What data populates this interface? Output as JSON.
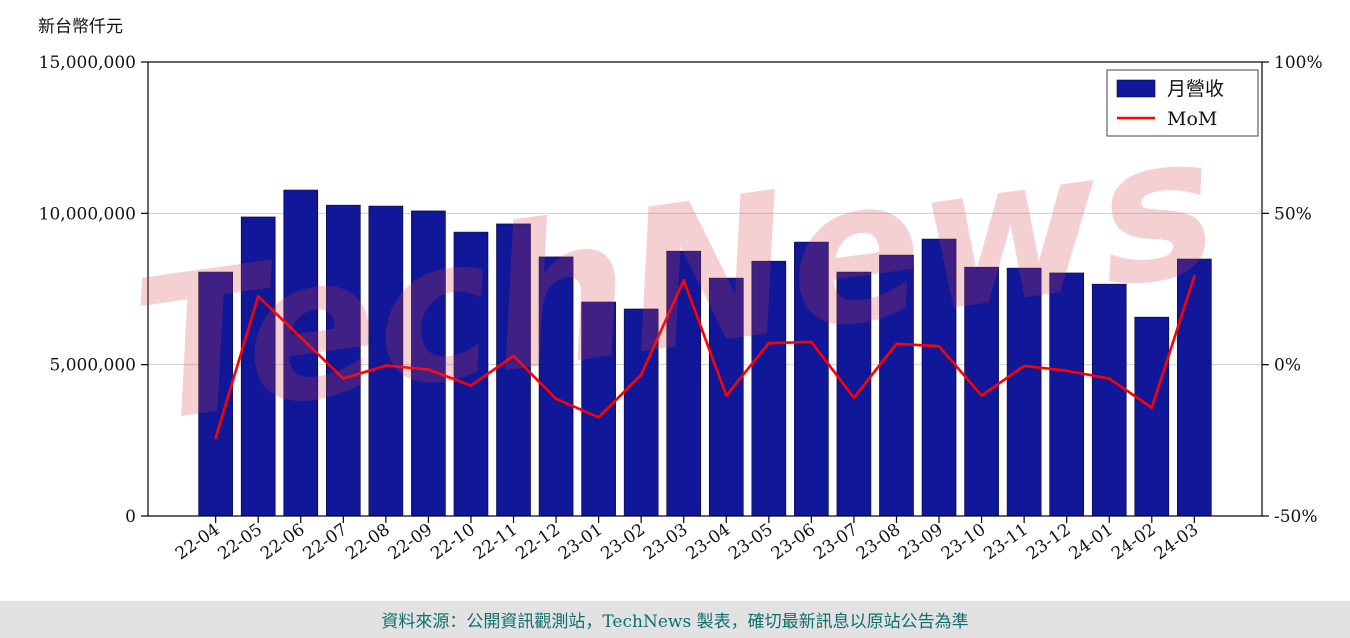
{
  "page": {
    "unit_label": "新台幣仟元",
    "watermark": "TechNews",
    "footer_text": "資料來源：公開資訊觀測站，TechNews 製表，確切最新訊息以原站公告為準"
  },
  "chart_data": {
    "type": "bar",
    "title": "",
    "categories": [
      "22-04",
      "22-05",
      "22-06",
      "22-07",
      "22-08",
      "22-09",
      "22-10",
      "22-11",
      "22-12",
      "23-01",
      "23-02",
      "23-03",
      "23-04",
      "23-05",
      "23-06",
      "23-07",
      "23-08",
      "23-09",
      "23-10",
      "23-11",
      "23-12",
      "24-01",
      "24-02",
      "24-03"
    ],
    "series": [
      {
        "name": "月營收",
        "type": "bar",
        "axis": "left",
        "color": "#101798",
        "values": [
          8060000,
          9880000,
          10770000,
          10270000,
          10240000,
          10080000,
          9380000,
          9650000,
          8560000,
          7070000,
          6840000,
          8750000,
          7860000,
          8420000,
          9050000,
          8060000,
          8620000,
          9150000,
          8220000,
          8190000,
          8030000,
          7660000,
          6570000,
          8490000
        ]
      },
      {
        "name": "MoM",
        "type": "line",
        "axis": "right",
        "color": "#ff0000",
        "values": [
          -24.2,
          22.6,
          9.0,
          -4.6,
          -0.3,
          -1.6,
          -6.9,
          2.9,
          -11.3,
          -17.4,
          -3.3,
          27.9,
          -10.2,
          7.1,
          7.5,
          -10.9,
          6.9,
          6.1,
          -10.2,
          -0.4,
          -2.0,
          -4.6,
          -14.2,
          29.2
        ]
      }
    ],
    "left_axis": {
      "label": "新台幣仟元",
      "min": 0,
      "max": 15000000,
      "ticks": [
        0,
        5000000,
        10000000,
        15000000
      ],
      "tick_labels": [
        "0",
        "5,000,000",
        "10,000,000",
        "15,000,000"
      ]
    },
    "right_axis": {
      "min": -50,
      "max": 100,
      "ticks": [
        -50,
        0,
        50,
        100
      ],
      "tick_labels": [
        "-50%",
        "0%",
        "50%",
        "100%"
      ]
    },
    "legend": {
      "position": "top-right",
      "entries": [
        "月營收",
        "MoM"
      ]
    },
    "grid": "horizontal-light",
    "watermark": {
      "text": "TechNews",
      "color": "#d93e46",
      "opacity": 0.24
    }
  }
}
